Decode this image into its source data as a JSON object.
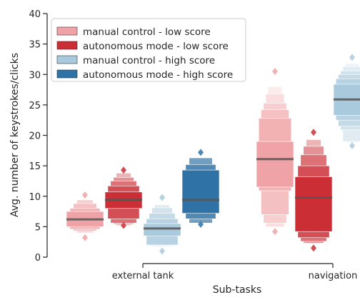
{
  "chart_data": {
    "type": "boxen",
    "xlabel": "Sub-tasks",
    "ylabel": "Avg. number of keystrokes/clicks",
    "ylim": [
      0,
      40
    ],
    "yticks": [
      0,
      5,
      10,
      15,
      20,
      25,
      30,
      35,
      40
    ],
    "categories": [
      "external tank",
      "navigation"
    ],
    "legend_position": "top-left",
    "grid": false,
    "series": [
      {
        "name": "manual control - low score",
        "color": "#f0a3a6"
      },
      {
        "name": "autonomous mode - low score",
        "color": "#cc2e35"
      },
      {
        "name": "manual control - high score",
        "color": "#a9c9dc"
      },
      {
        "name": "autonomous mode - high score",
        "color": "#2e72a6"
      }
    ],
    "boxes": [
      {
        "category": "external tank",
        "series": 0,
        "median": 6.2,
        "levels": [
          [
            5.0,
            7.5
          ],
          [
            4.6,
            8.0
          ],
          [
            4.3,
            8.8
          ],
          [
            4.0,
            9.4
          ]
        ],
        "outliers_low": [
          3.2
        ],
        "outliers_high": [
          10.2
        ]
      },
      {
        "category": "external tank",
        "series": 1,
        "median": 9.4,
        "levels": [
          [
            8.0,
            10.7
          ],
          [
            6.3,
            11.7
          ],
          [
            5.6,
            12.5
          ],
          [
            5.4,
            13.1
          ],
          [
            5.2,
            13.8
          ]
        ],
        "outliers_low": [
          5.2
        ],
        "outliers_high": [
          14.3
        ]
      },
      {
        "category": "external tank",
        "series": 2,
        "median": 4.7,
        "levels": [
          [
            3.5,
            5.5
          ],
          [
            2.0,
            6.3
          ],
          [
            1.9,
            7.2
          ],
          [
            1.8,
            8.1
          ],
          [
            1.7,
            8.6
          ]
        ],
        "outliers_low": [
          1.0
        ],
        "outliers_high": [
          9.8
        ]
      },
      {
        "category": "external tank",
        "series": 3,
        "median": 9.4,
        "levels": [
          [
            7.2,
            14.3
          ],
          [
            6.3,
            15.2
          ],
          [
            5.6,
            16.3
          ]
        ],
        "outliers_low": [
          5.4
        ],
        "outliers_high": [
          17.2
        ]
      },
      {
        "category": "navigation",
        "series": 0,
        "median": 16.1,
        "levels": [
          [
            11.5,
            19.0
          ],
          [
            10.9,
            22.8
          ],
          [
            7.0,
            24.2
          ],
          [
            5.6,
            25.3
          ],
          [
            5.0,
            26.8
          ],
          [
            4.9,
            28.0
          ]
        ],
        "outliers_low": [
          4.2
        ],
        "outliers_high": [
          30.5
        ]
      },
      {
        "category": "navigation",
        "series": 1,
        "median": 9.8,
        "levels": [
          [
            4.2,
            13.2
          ],
          [
            3.2,
            15.0
          ],
          [
            2.6,
            16.8
          ],
          [
            2.3,
            18.2
          ],
          [
            2.2,
            19.3
          ]
        ],
        "outliers_low": [
          1.5
        ],
        "outliers_high": [
          20.5
        ]
      },
      {
        "category": "navigation",
        "series": 2,
        "median": 25.9,
        "levels": [
          [
            23.3,
            28.4
          ],
          [
            22.5,
            29.3
          ],
          [
            21.5,
            30.0
          ],
          [
            20.9,
            30.6
          ],
          [
            19.0,
            31.3
          ],
          [
            18.8,
            31.8
          ]
        ],
        "outliers_low": [
          18.3
        ],
        "outliers_high": [
          32.8
        ]
      }
    ]
  }
}
